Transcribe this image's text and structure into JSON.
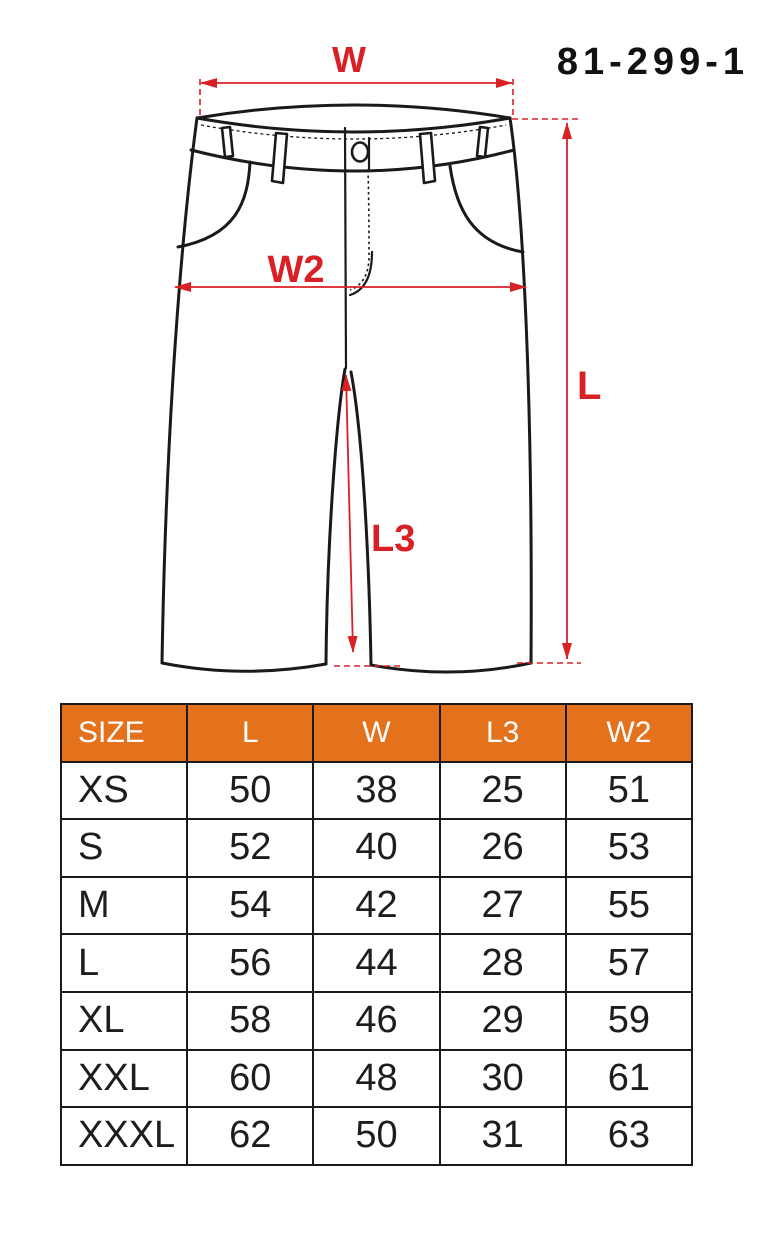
{
  "product_code": "81-299-1",
  "diagram": {
    "type": "technical-drawing",
    "subject": "shorts front view with dimension arrows",
    "dimension_labels": {
      "w": "W",
      "w2": "W2",
      "l": "L",
      "l3": "L3"
    },
    "colors": {
      "dimension_red": "#d92027",
      "outline_black": "#1a1a1a"
    }
  },
  "size_table": {
    "header_bg": "#e4711c",
    "header_text_color": "#ffffff",
    "columns": [
      "SIZE",
      "L",
      "W",
      "L3",
      "W2"
    ],
    "rows": [
      {
        "size": "XS",
        "L": "50",
        "W": "38",
        "L3": "25",
        "W2": "51"
      },
      {
        "size": "S",
        "L": "52",
        "W": "40",
        "L3": "26",
        "W2": "53"
      },
      {
        "size": "M",
        "L": "54",
        "W": "42",
        "L3": "27",
        "W2": "55"
      },
      {
        "size": "L",
        "L": "56",
        "W": "44",
        "L3": "28",
        "W2": "57"
      },
      {
        "size": "XL",
        "L": "58",
        "W": "46",
        "L3": "29",
        "W2": "59"
      },
      {
        "size": "XXL",
        "L": "60",
        "W": "48",
        "L3": "30",
        "W2": "61"
      },
      {
        "size": "XXXL",
        "L": "62",
        "W": "50",
        "L3": "31",
        "W2": "63"
      }
    ]
  }
}
